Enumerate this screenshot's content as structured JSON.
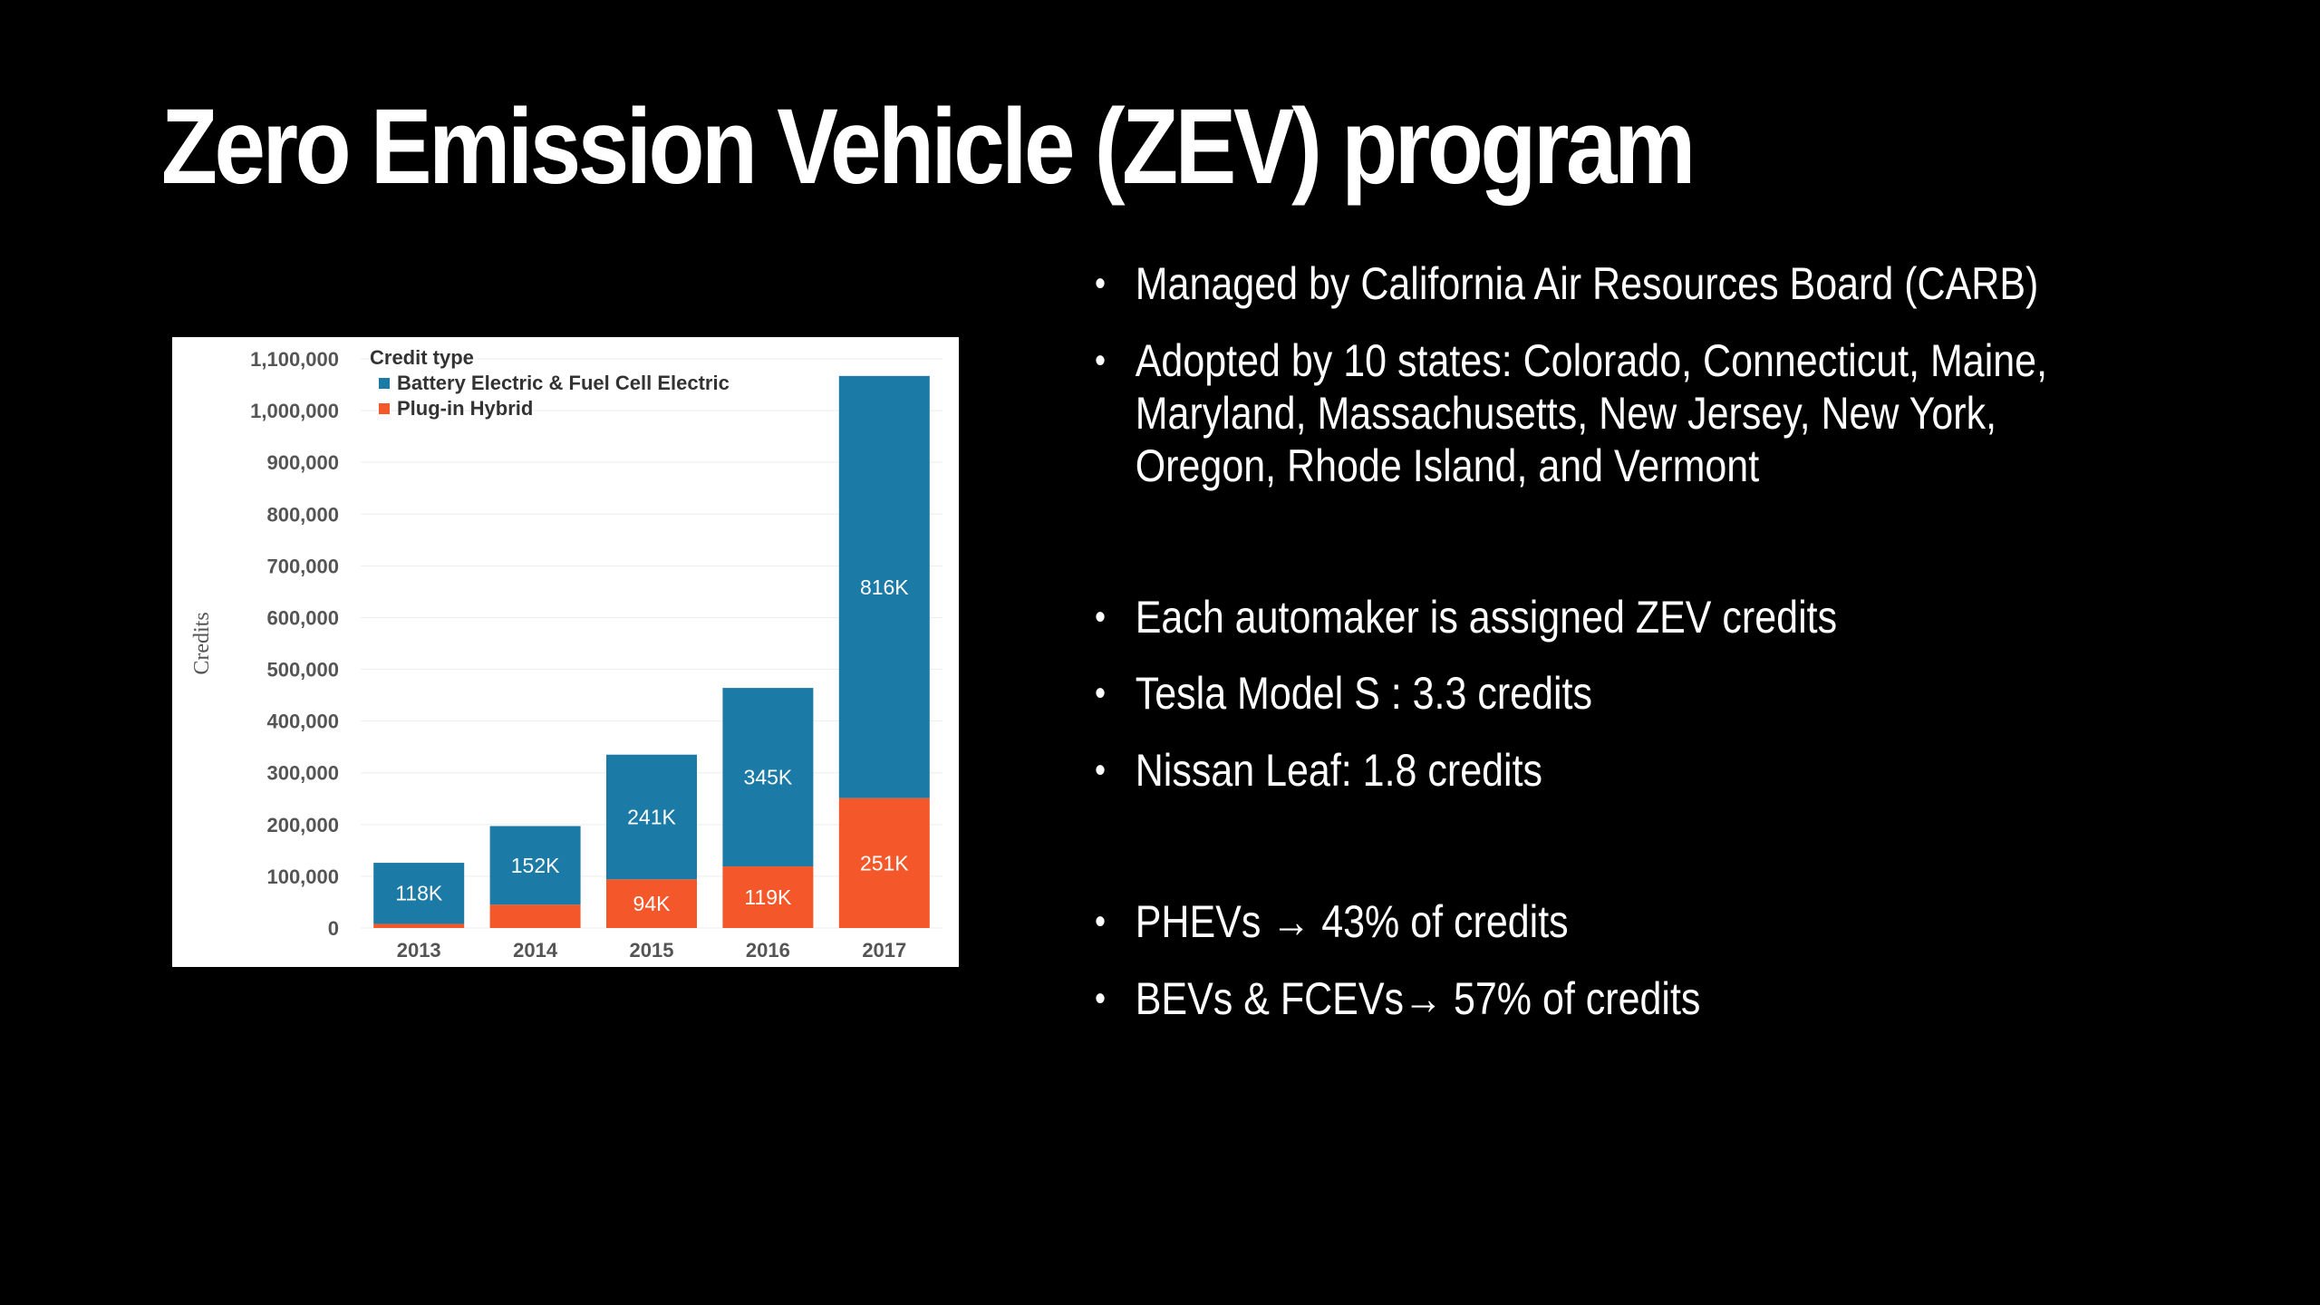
{
  "slide": {
    "title": "Zero Emission Vehicle (ZEV) program"
  },
  "bullets": [
    {
      "lines": [
        "Managed by California Air Resources Board (CARB)"
      ]
    },
    {
      "lines": [
        "Adopted by 10 states: Colorado, Connecticut, Maine,",
        "Maryland, Massachusetts, New Jersey, New York,",
        "Oregon, Rhode Island, and Vermont"
      ]
    },
    {
      "lines": [
        "Each automaker is assigned ZEV credits"
      ]
    },
    {
      "lines": [
        "Tesla Model S : 3.3 credits"
      ]
    },
    {
      "lines": [
        "Nissan Leaf: 1.8 credits"
      ]
    },
    {
      "lines": [
        "PHEVs → 43% of credits"
      ]
    },
    {
      "lines": [
        "BEVs & FCEVs→ 57% of credits"
      ]
    }
  ],
  "bullet_glyph": "•",
  "chart_data": {
    "type": "bar",
    "stacked": true,
    "categories": [
      "2013",
      "2014",
      "2015",
      "2016",
      "2017"
    ],
    "series": [
      {
        "name": "Plug-in Hybrid",
        "color": "#f4582a",
        "values": [
          8000,
          45000,
          94000,
          119000,
          251000
        ],
        "labels": [
          "",
          "",
          "94K",
          "119K",
          "251K"
        ]
      },
      {
        "name": "Battery Electric & Fuel Cell Electric",
        "color": "#1b7aa6",
        "values": [
          118000,
          152000,
          241000,
          345000,
          816000
        ],
        "labels": [
          "118K",
          "152K",
          "241K",
          "345K",
          "816K"
        ]
      }
    ],
    "legend_title": "Credit type",
    "legend_position": "top-left",
    "ylabel": "Credits",
    "ylim": [
      0,
      1100000
    ],
    "yticks": [
      0,
      100000,
      200000,
      300000,
      400000,
      500000,
      600000,
      700000,
      800000,
      900000,
      1000000,
      1100000
    ],
    "ytick_labels": [
      "0",
      "100,000",
      "200,000",
      "300,000",
      "400,000",
      "500,000",
      "600,000",
      "700,000",
      "800,000",
      "900,000",
      "1,000,000",
      "1,100,000"
    ],
    "grid": true
  }
}
